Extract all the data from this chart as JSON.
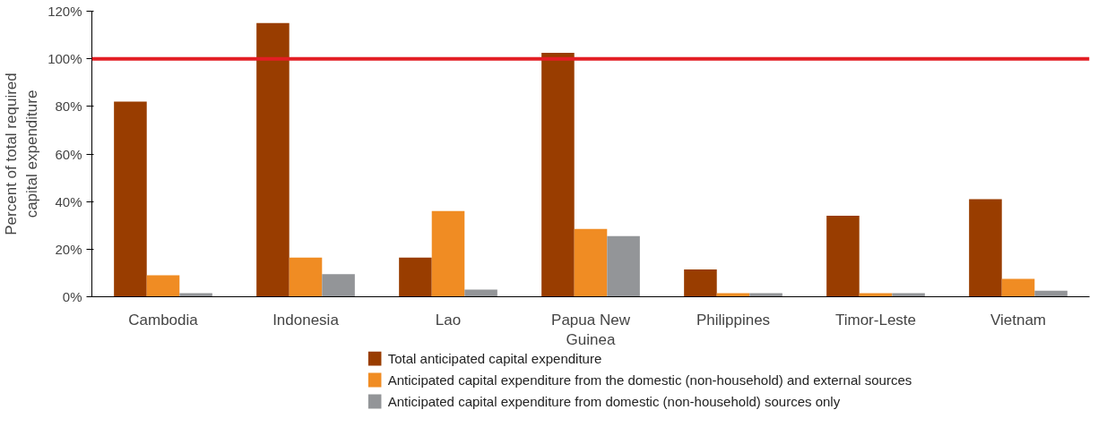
{
  "chart_data": {
    "type": "bar",
    "ylabel": "Percent of total required\ncapital expenditure",
    "categories": [
      "Cambodia",
      "Indonesia",
      "Lao",
      "Papua New\nGuinea",
      "Philippines",
      "Timor-Leste",
      "Vietnam"
    ],
    "series": [
      {
        "name": "Total anticipated capital expenditure",
        "color": "#993d00",
        "values": [
          82,
          115,
          16.5,
          102.5,
          11.5,
          34,
          41
        ]
      },
      {
        "name": "Anticipated capital expenditure from the domestic (non-household) and external sources",
        "color": "#f08c23",
        "values": [
          9,
          16.5,
          36,
          28.5,
          1.5,
          1.5,
          7.5
        ]
      },
      {
        "name": "Anticipated capital expenditure from domestic (non-household) sources only",
        "color": "#939598",
        "values": [
          1.5,
          9.5,
          3,
          25.5,
          1.5,
          1.5,
          2.5
        ]
      }
    ],
    "ylim": [
      0,
      120
    ],
    "yticks": [
      {
        "value": 0,
        "label": "0%"
      },
      {
        "value": 20,
        "label": "20%"
      },
      {
        "value": 40,
        "label": "40%"
      },
      {
        "value": 60,
        "label": "60%"
      },
      {
        "value": 80,
        "label": "80%"
      },
      {
        "value": 100,
        "label": "100%"
      },
      {
        "value": 120,
        "label": "120%"
      }
    ],
    "ref_lines": [
      {
        "axis": "y",
        "value": 100,
        "label": null,
        "color": "#e31e24"
      }
    ],
    "grid": false,
    "legend": "bottom"
  }
}
